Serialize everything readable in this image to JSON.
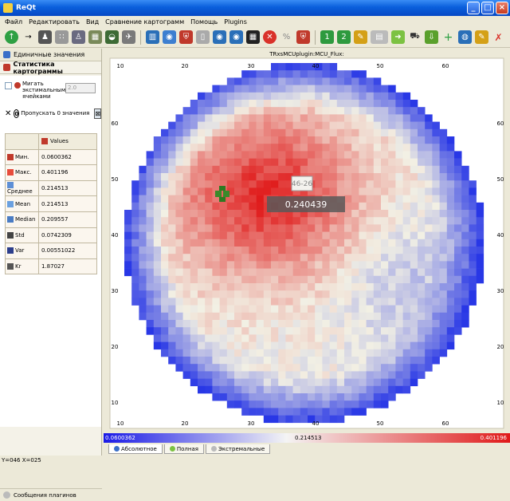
{
  "window": {
    "title": "ReQt"
  },
  "menu": [
    "Файл",
    "Редактировать",
    "Вид",
    "Сравнение картограмм",
    "Помощь",
    "Plugins"
  ],
  "left_panel": {
    "tab1": "Единичные значения",
    "tab2": "Статистика картограммы",
    "blink_label": "Мигать экстимальными ячейками",
    "spin_value": "2.0",
    "skip_label": "Пропускать",
    "skip_count": "0",
    "skip_suffix": "значения",
    "values_header": "Values",
    "stats": [
      {
        "name": "Мин.",
        "value": "0.0600362",
        "color": "#c0392b"
      },
      {
        "name": "Макс.",
        "value": "0.401196",
        "color": "#e74c3c"
      },
      {
        "name": "Среднее",
        "value": "0.214513",
        "color": "#5d8fd6"
      },
      {
        "name": "Mean",
        "value": "0.214513",
        "color": "#6aa0e0"
      },
      {
        "name": "Median",
        "value": "0.209557",
        "color": "#4a7cc4"
      },
      {
        "name": "Std",
        "value": "0.0742309",
        "color": "#444"
      },
      {
        "name": "Var",
        "value": "0.00551022",
        "color": "#2c3e8c"
      },
      {
        "name": "Kr",
        "value": "1.87027",
        "color": "#555"
      }
    ],
    "bottom_tab": "Сообщения плагинов"
  },
  "map": {
    "title": "TRxsMCUplugin:MCU_Flux:",
    "top_ticks": [
      "10",
      "20",
      "30",
      "40",
      "50",
      "60"
    ],
    "bottom_ticks": [
      "10",
      "20",
      "30",
      "40",
      "50",
      "60"
    ],
    "left_ticks": [
      "60",
      "50",
      "40",
      "30",
      "20",
      "10"
    ],
    "right_ticks": [
      "60",
      "50",
      "40",
      "30",
      "20",
      "10"
    ],
    "tooltip_coord": "46-26",
    "tooltip_value": "0.240439"
  },
  "scale": {
    "min": "0.0600362",
    "mid": "0.214513",
    "max": "0.401196"
  },
  "bottom_tabs": [
    "Абсолютное",
    "Полная",
    "Экстремальные"
  ],
  "status": "Y=046 X=025",
  "colors": {
    "low": "#2a3ae6",
    "mid": "#f2f0e4",
    "high": "#e01a1a"
  }
}
